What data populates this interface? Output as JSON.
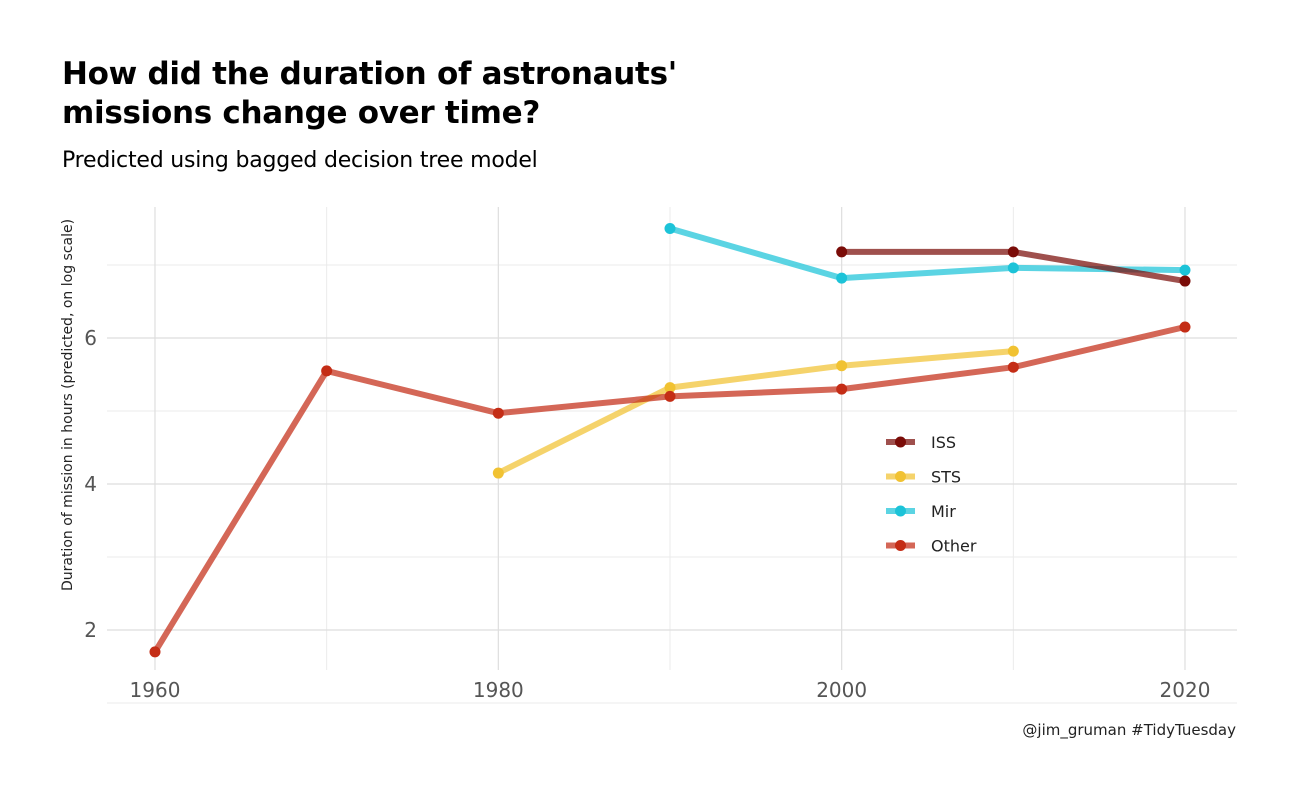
{
  "title_line1": "How did the duration of astronauts'",
  "title_line2": "missions change over time?",
  "subtitle": "Predicted using bagged decision tree model",
  "caption": "@jim_gruman #TidyTuesday",
  "chart_data": {
    "type": "line",
    "title": "How did the duration of astronauts' missions change over time?",
    "subtitle": "Predicted using bagged decision tree model",
    "xlabel": "",
    "ylabel": "Duration of mission in hours (predicted, on log scale)",
    "x_ticks": [
      1960,
      1980,
      2000,
      2020
    ],
    "y_ticks": [
      2,
      4,
      6
    ],
    "xlim": [
      1956,
      2023
    ],
    "ylim": [
      1.4,
      7.8
    ],
    "grid": true,
    "legend_position": "inside-right",
    "series": [
      {
        "name": "ISS",
        "color": "#7A0C08",
        "opacity": 0.72,
        "points": [
          [
            2000,
            7.18
          ],
          [
            2010,
            7.18
          ],
          [
            2020,
            6.78
          ]
        ]
      },
      {
        "name": "STS",
        "color": "#F1C232",
        "opacity": 0.72,
        "points": [
          [
            1980,
            4.15
          ],
          [
            1990,
            5.32
          ],
          [
            2000,
            5.62
          ],
          [
            2010,
            5.82
          ]
        ]
      },
      {
        "name": "Mir",
        "color": "#1CC3D8",
        "opacity": 0.72,
        "points": [
          [
            1990,
            7.5
          ],
          [
            2000,
            6.82
          ],
          [
            2010,
            6.96
          ],
          [
            2020,
            6.93
          ]
        ]
      },
      {
        "name": "Other",
        "color": "#C42D16",
        "opacity": 0.72,
        "points": [
          [
            1960,
            1.7
          ],
          [
            1970,
            5.55
          ],
          [
            1980,
            4.97
          ],
          [
            1990,
            5.2
          ],
          [
            2000,
            5.3
          ],
          [
            2010,
            5.6
          ],
          [
            2020,
            6.15
          ]
        ]
      }
    ]
  }
}
